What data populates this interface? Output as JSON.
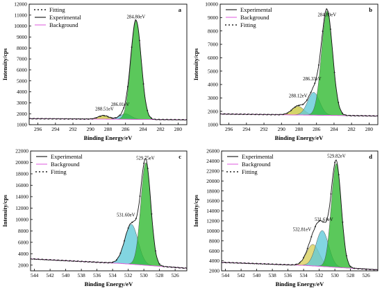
{
  "chart_data": [
    {
      "type": "area",
      "panel_label": "a",
      "xlabel": "Binding Energy/eV",
      "ylabel": "Intensity/cps",
      "xlim": [
        297,
        279
      ],
      "ylim": [
        1000,
        12000
      ],
      "xticks": [
        296,
        294,
        292,
        290,
        288,
        286,
        284,
        282,
        280
      ],
      "yticks": [
        1000,
        2000,
        3000,
        4000,
        5000,
        6000,
        7000,
        8000,
        9000,
        10000,
        11000,
        12000
      ],
      "legend": [
        "Fitting",
        "Experimental",
        "Background"
      ],
      "legend_position": "top-left",
      "background": [
        [
          297,
          1550
        ],
        [
          279,
          1450
        ]
      ],
      "peaks": [
        {
          "center": 284.8,
          "height": 9000,
          "fwhm": 1.4,
          "color": "#2db82d",
          "label": "284.80eV",
          "label_at": [
            284.8,
            10700
          ]
        },
        {
          "center": 286.01,
          "height": 500,
          "fwhm": 1.5,
          "color": "#5fc9d9",
          "label": "286.01eV",
          "label_at": [
            286.6,
            2700
          ]
        },
        {
          "center": 288.51,
          "height": 330,
          "fwhm": 1.4,
          "color": "#c9c83f",
          "label": "288.51eV",
          "label_at": [
            288.4,
            2300
          ]
        }
      ]
    },
    {
      "type": "area",
      "panel_label": "b",
      "xlabel": "Binding Energy/eV",
      "ylabel": "Intensity/cps",
      "xlim": [
        297,
        279
      ],
      "ylim": [
        1000,
        10000
      ],
      "xticks": [
        296,
        294,
        292,
        290,
        288,
        286,
        284,
        282,
        280
      ],
      "yticks": [
        1000,
        2000,
        3000,
        4000,
        5000,
        6000,
        7000,
        8000,
        9000,
        10000
      ],
      "legend": [
        "Experimental",
        "Background",
        "Fitting"
      ],
      "legend_position": "top-left",
      "background": [
        [
          297,
          1800
        ],
        [
          279,
          1650
        ]
      ],
      "peaks": [
        {
          "center": 284.8,
          "height": 7800,
          "fwhm": 1.5,
          "color": "#2db82d",
          "label": "284.80eV",
          "label_at": [
            284.8,
            9100
          ]
        },
        {
          "center": 286.33,
          "height": 1700,
          "fwhm": 1.6,
          "color": "#5fc9d9",
          "label": "286.33eV",
          "label_at": [
            286.5,
            4300
          ]
        },
        {
          "center": 288.12,
          "height": 650,
          "fwhm": 1.6,
          "color": "#c9c83f",
          "label": "288.12eV",
          "label_at": [
            288.1,
            3050
          ]
        }
      ]
    },
    {
      "type": "area",
      "panel_label": "c",
      "xlabel": "Binding Energy/eV",
      "ylabel": "Intensity/cps",
      "xlim": [
        544.5,
        524.5
      ],
      "ylim": [
        1000,
        22000
      ],
      "xticks": [
        544,
        542,
        540,
        538,
        536,
        534,
        532,
        530,
        528,
        526
      ],
      "yticks": [
        2000,
        4000,
        6000,
        8000,
        10000,
        12000,
        14000,
        16000,
        18000,
        20000,
        22000
      ],
      "legend": [
        "Experimental",
        "Background",
        "Fitting"
      ],
      "legend_position": "top-left",
      "background": [
        [
          544.5,
          3100
        ],
        [
          533,
          2300
        ],
        [
          524.5,
          1450
        ]
      ],
      "peaks": [
        {
          "center": 529.75,
          "height": 18000,
          "fwhm": 1.5,
          "color": "#2db82d",
          "label": "529.75eV",
          "label_at": [
            529.8,
            20500
          ]
        },
        {
          "center": 531.6,
          "height": 7000,
          "fwhm": 2.0,
          "color": "#5fc9d9",
          "label": "531.60eV",
          "label_at": [
            532.3,
            10500
          ]
        }
      ]
    },
    {
      "type": "area",
      "panel_label": "d",
      "xlabel": "Binding Energy/eV",
      "ylabel": "Intensity/cps",
      "xlim": [
        544.5,
        524.5
      ],
      "ylim": [
        2000,
        26000
      ],
      "xticks": [
        544,
        542,
        540,
        538,
        536,
        534,
        532,
        530,
        528,
        526
      ],
      "yticks": [
        2000,
        4000,
        6000,
        8000,
        10000,
        12000,
        14000,
        16000,
        18000,
        20000,
        22000,
        24000,
        26000
      ],
      "legend": [
        "Experimental",
        "Background",
        "Fitting"
      ],
      "legend_position": "top-left",
      "background": [
        [
          544.5,
          3700
        ],
        [
          534,
          3100
        ],
        [
          524.5,
          2200
        ]
      ],
      "peaks": [
        {
          "center": 529.82,
          "height": 20800,
          "fwhm": 1.5,
          "color": "#2db82d",
          "label": "529.82eV",
          "label_at": [
            529.8,
            24700
          ]
        },
        {
          "center": 531.61,
          "height": 7200,
          "fwhm": 1.9,
          "color": "#5fc9d9",
          "label": "531.61eV",
          "label_at": [
            531.4,
            12000
          ]
        },
        {
          "center": 532.81,
          "height": 4300,
          "fwhm": 1.9,
          "color": "#d8cf5a",
          "label": "532.81eV",
          "label_at": [
            534.2,
            10000
          ]
        }
      ]
    }
  ]
}
